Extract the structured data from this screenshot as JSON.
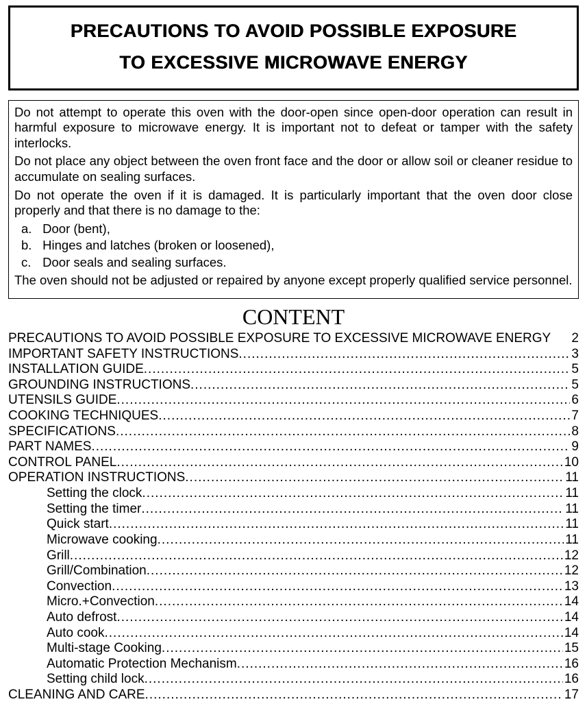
{
  "title": {
    "line1": "PRECAUTIONS TO AVOID POSSIBLE EXPOSURE",
    "line2": "TO EXCESSIVE MICROWAVE ENERGY"
  },
  "warning": {
    "p1": "Do not attempt to operate this oven with the door-open since open-door operation can result in harmful exposure to microwave energy. It is important not to defeat or tamper with the safety interlocks.",
    "p2": "Do not place any object between the oven front face and the door or allow soil or cleaner residue to accumulate on sealing surfaces.",
    "p3": "Do not operate the oven if it is damaged. It is particularly important that the oven door close properly and that there is no damage to the:",
    "items": [
      {
        "label": "a.",
        "text": "Door (bent),"
      },
      {
        "label": "b.",
        "text": "Hinges and latches (broken or loosened),"
      },
      {
        "label": "c.",
        "text": "Door seals and sealing surfaces."
      }
    ],
    "p4": "The oven should not be adjusted or repaired by anyone except properly qualified service personnel."
  },
  "content_heading": "CONTENT",
  "toc": [
    {
      "label": "PRECAUTIONS TO AVOID POSSIBLE EXPOSURE TO EXCESSIVE MICROWAVE ENERGY",
      "page": "2",
      "sub": false,
      "nodots": true
    },
    {
      "label": "IMPORTANT SAFETY INSTRUCTIONS",
      "page": "3",
      "sub": false
    },
    {
      "label": "INSTALLATION GUIDE",
      "page": "5",
      "sub": false
    },
    {
      "label": "GROUNDING INSTRUCTIONS",
      "page": "5",
      "sub": false
    },
    {
      "label": "UTENSILS GUIDE",
      "page": "6",
      "sub": false
    },
    {
      "label": "COOKING TECHNIQUES",
      "page": "7",
      "sub": false
    },
    {
      "label": "SPECIFICATIONS",
      "page": "8",
      "sub": false
    },
    {
      "label": "PART NAMES",
      "page": "9",
      "sub": false
    },
    {
      "label": "CONTROL PANEL",
      "page": "10",
      "sub": false
    },
    {
      "label": "OPERATION INSTRUCTIONS",
      "page": "11",
      "sub": false
    },
    {
      "label": "Setting the clock",
      "page": "11",
      "sub": true
    },
    {
      "label": "Setting the timer",
      "page": "11",
      "sub": true
    },
    {
      "label": "Quick start",
      "page": "11",
      "sub": true
    },
    {
      "label": "Microwave cooking",
      "page": "11",
      "sub": true
    },
    {
      "label": "Grill",
      "page": "12",
      "sub": true
    },
    {
      "label": "Grill/Combination",
      "page": "12",
      "sub": true
    },
    {
      "label": "Convection",
      "page": "13",
      "sub": true
    },
    {
      "label": "Micro.+Convection",
      "page": "14",
      "sub": true
    },
    {
      "label": "Auto defrost",
      "page": "14",
      "sub": true
    },
    {
      "label": "Auto cook",
      "page": "14",
      "sub": true
    },
    {
      "label": "Multi-stage Cooking",
      "page": "15",
      "sub": true
    },
    {
      "label": "Automatic Protection Mechanism",
      "page": "16",
      "sub": true
    },
    {
      "label": "Setting child lock",
      "page": "16",
      "sub": true
    },
    {
      "label": "CLEANING AND CARE",
      "page": "17",
      "sub": false
    }
  ]
}
